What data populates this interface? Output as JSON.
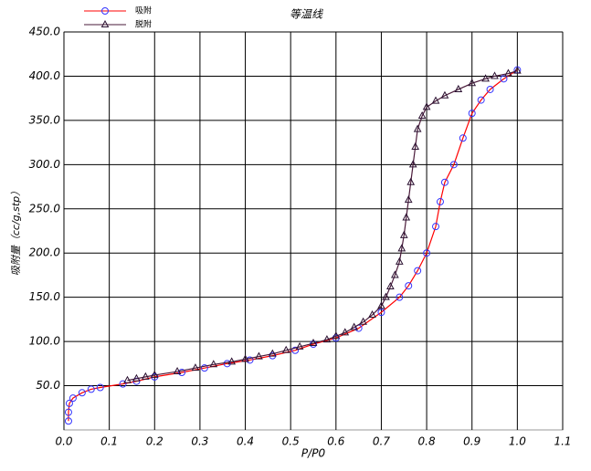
{
  "chart_data": {
    "type": "line",
    "title": "等温线",
    "x_label": "P/P0",
    "y_label": "吸附量（cc/g,stp）",
    "xlim": [
      0,
      1.1
    ],
    "ylim": [
      0,
      450
    ],
    "grid": true,
    "xticks": [
      {
        "value": 0,
        "label": "0.0"
      },
      {
        "value": 0.1,
        "label": "0.1"
      },
      {
        "value": 0.2,
        "label": "0.2"
      },
      {
        "value": 0.3,
        "label": "0.3"
      },
      {
        "value": 0.4,
        "label": "0.4"
      },
      {
        "value": 0.5,
        "label": "0.5"
      },
      {
        "value": 0.6,
        "label": "0.6"
      },
      {
        "value": 0.7,
        "label": "0.7"
      },
      {
        "value": 0.8,
        "label": "0.8"
      },
      {
        "value": 0.9,
        "label": "0.9"
      },
      {
        "value": 1.0,
        "label": "1.0"
      },
      {
        "value": 1.1,
        "label": "1.1"
      }
    ],
    "yticks": [
      {
        "value": 50,
        "label": "50.0"
      },
      {
        "value": 100,
        "label": "100.0"
      },
      {
        "value": 150,
        "label": "150.0"
      },
      {
        "value": 200,
        "label": "200.0"
      },
      {
        "value": 250,
        "label": "250.0"
      },
      {
        "value": 300,
        "label": "300.0"
      },
      {
        "value": 350,
        "label": "350.0"
      },
      {
        "value": 400,
        "label": "400.0"
      },
      {
        "value": 450,
        "label": "450.0"
      }
    ],
    "legend": "top-left",
    "series": [
      {
        "name": "吸附",
        "color": "#ff0000",
        "marker": "circle",
        "marker_color": "#3333ff",
        "x": [
          0.01,
          0.01,
          0.012,
          0.02,
          0.04,
          0.06,
          0.08,
          0.13,
          0.16,
          0.2,
          0.26,
          0.31,
          0.36,
          0.41,
          0.46,
          0.51,
          0.55,
          0.6,
          0.65,
          0.7,
          0.74,
          0.76,
          0.78,
          0.8,
          0.82,
          0.83,
          0.84,
          0.86,
          0.88,
          0.9,
          0.92,
          0.94,
          0.97,
          1.0
        ],
        "values": [
          10,
          20,
          30,
          36,
          42,
          46,
          48,
          52,
          55,
          60,
          65,
          70,
          75,
          79,
          84,
          90,
          97,
          104,
          115,
          133,
          150,
          163,
          180,
          200,
          230,
          258,
          280,
          300,
          330,
          358,
          373,
          385,
          397,
          407
        ]
      },
      {
        "name": "脱附",
        "color": "#4a1a3a",
        "marker": "triangle",
        "marker_color": "#2a1030",
        "x": [
          1.0,
          0.98,
          0.95,
          0.93,
          0.9,
          0.87,
          0.84,
          0.82,
          0.8,
          0.79,
          0.78,
          0.775,
          0.77,
          0.765,
          0.76,
          0.755,
          0.75,
          0.745,
          0.74,
          0.73,
          0.72,
          0.71,
          0.7,
          0.68,
          0.66,
          0.64,
          0.62,
          0.6,
          0.58,
          0.55,
          0.52,
          0.49,
          0.46,
          0.43,
          0.4,
          0.37,
          0.33,
          0.29,
          0.25,
          0.2,
          0.18,
          0.16,
          0.14
        ],
        "values": [
          406,
          403,
          400,
          397,
          392,
          385,
          378,
          372,
          365,
          355,
          340,
          320,
          300,
          280,
          260,
          240,
          220,
          205,
          190,
          175,
          162,
          150,
          140,
          130,
          122,
          116,
          110,
          106,
          102,
          98,
          94,
          90,
          86,
          83,
          80,
          77,
          74,
          70,
          66,
          62,
          60,
          58,
          56
        ]
      }
    ]
  }
}
